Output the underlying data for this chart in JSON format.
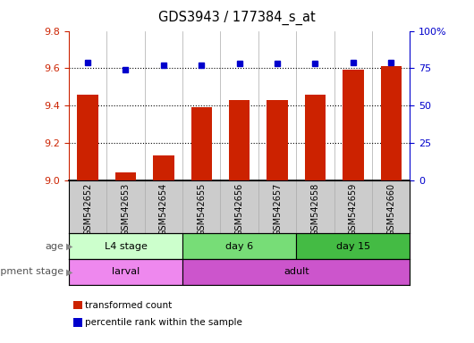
{
  "title": "GDS3943 / 177384_s_at",
  "samples": [
    "GSM542652",
    "GSM542653",
    "GSM542654",
    "GSM542655",
    "GSM542656",
    "GSM542657",
    "GSM542658",
    "GSM542659",
    "GSM542660"
  ],
  "bar_values": [
    9.46,
    9.04,
    9.13,
    9.39,
    9.43,
    9.43,
    9.46,
    9.59,
    9.61
  ],
  "dot_values": [
    79,
    74,
    77,
    77,
    78,
    78,
    78,
    79,
    79
  ],
  "bar_color": "#cc2200",
  "dot_color": "#0000cc",
  "ylim_left": [
    9.0,
    9.8
  ],
  "ylim_right": [
    0,
    100
  ],
  "yticks_left": [
    9.0,
    9.2,
    9.4,
    9.6,
    9.8
  ],
  "yticks_right": [
    0,
    25,
    50,
    75,
    100
  ],
  "ytick_labels_right": [
    "0",
    "25",
    "50",
    "75",
    "100%"
  ],
  "grid_values": [
    9.2,
    9.4,
    9.6
  ],
  "age_groups": [
    {
      "label": "L4 stage",
      "start": 0,
      "end": 3,
      "color": "#ccffcc"
    },
    {
      "label": "day 6",
      "start": 3,
      "end": 6,
      "color": "#77dd77"
    },
    {
      "label": "day 15",
      "start": 6,
      "end": 9,
      "color": "#44bb44"
    }
  ],
  "dev_groups": [
    {
      "label": "larval",
      "start": 0,
      "end": 3,
      "color": "#ee88ee"
    },
    {
      "label": "adult",
      "start": 3,
      "end": 9,
      "color": "#cc55cc"
    }
  ],
  "age_label": "age",
  "dev_label": "development stage",
  "legend_bar": "transformed count",
  "legend_dot": "percentile rank within the sample",
  "bar_width": 0.55,
  "bg_color": "#ffffff",
  "sample_bg": "#cccccc",
  "tick_color_left": "#cc2200",
  "tick_color_right": "#0000cc"
}
